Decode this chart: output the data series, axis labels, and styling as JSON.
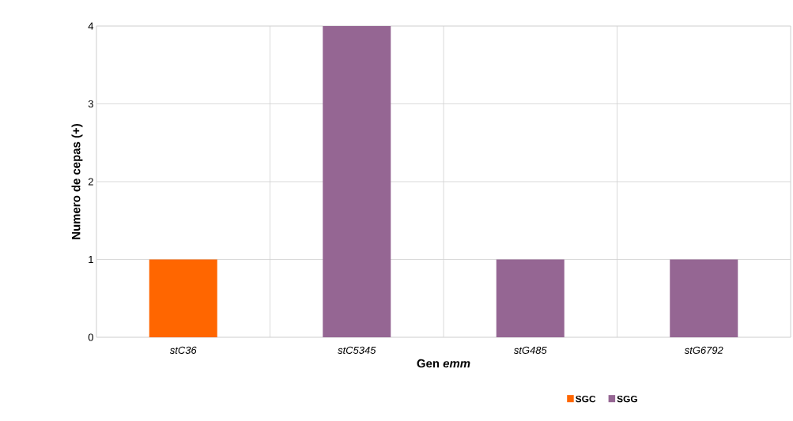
{
  "chart_data": {
    "type": "bar",
    "xlabel": "Gen *emm*",
    "ylabel": "Numero de cepas (+)",
    "categories": [
      "stC36",
      "stC5345",
      "stG485",
      "stG6792"
    ],
    "series": [
      {
        "name": "SGC",
        "color": "#ff6600",
        "values": [
          1,
          null,
          null,
          null
        ]
      },
      {
        "name": "SGG",
        "color": "#956693",
        "values": [
          null,
          4,
          1,
          1
        ]
      }
    ],
    "ylim": [
      0,
      4
    ],
    "yticks": [
      0,
      1,
      2,
      3,
      4
    ],
    "grid": true,
    "legend": "bottom"
  }
}
